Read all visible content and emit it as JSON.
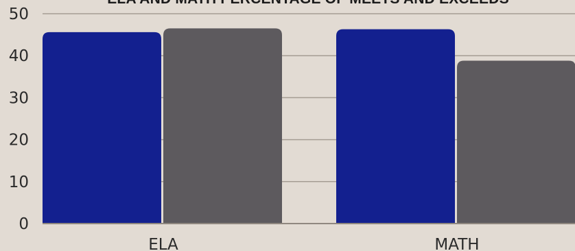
{
  "chart_data": {
    "type": "bar",
    "title": "ELA AND MATH PERCENTAGE OF MEETS AND EXCEEDS",
    "categories": [
      "ELA",
      "MATH"
    ],
    "series": [
      {
        "values": [
          45.6,
          46.3
        ],
        "color": "#13208f"
      },
      {
        "values": [
          46.5,
          38.8
        ],
        "color": "#5d5a5e"
      }
    ],
    "yticks": [
      0,
      10,
      20,
      30,
      40,
      50
    ],
    "ylim": [
      0,
      50
    ],
    "xlabel": "",
    "ylabel": "",
    "grid": true,
    "legend": "none"
  },
  "colors": {
    "background": "#e2dbd3",
    "gridline": "#a59d93",
    "axis": "#8f877f"
  }
}
